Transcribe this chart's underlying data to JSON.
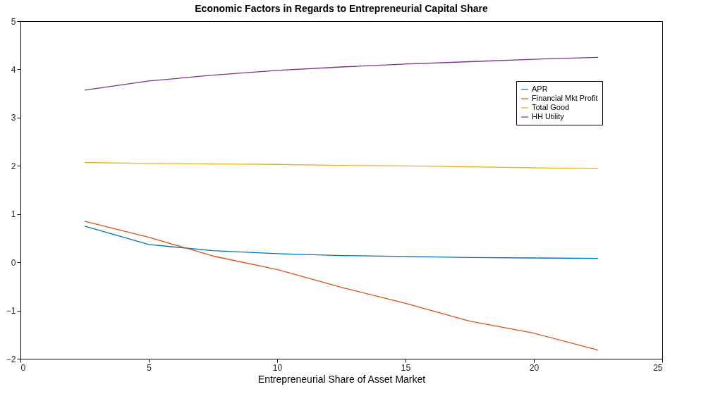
{
  "chart_data": {
    "type": "line",
    "title": "Economic Factors in Regards to Entrepreneurial Capital Share",
    "xlabel": "Entrepreneurial Share of Asset Market",
    "x": [
      2.5,
      5,
      7.5,
      10,
      12.5,
      15,
      17.5,
      20,
      22.5
    ],
    "series": [
      {
        "name": "APR",
        "color": "#0072bd",
        "values": [
          0.75,
          0.37,
          0.24,
          0.18,
          0.14,
          0.12,
          0.1,
          0.09,
          0.08
        ]
      },
      {
        "name": "Financial Mkt Profit",
        "color": "#d95319",
        "values": [
          0.85,
          0.52,
          0.13,
          -0.15,
          -0.52,
          -0.85,
          -1.22,
          -1.47,
          -1.82
        ]
      },
      {
        "name": "Total Good",
        "color": "#edb120",
        "values": [
          2.07,
          2.05,
          2.04,
          2.03,
          2.01,
          2.0,
          1.98,
          1.96,
          1.94
        ]
      },
      {
        "name": "HH Utility",
        "color": "#7e2f8e",
        "values": [
          3.57,
          3.76,
          3.88,
          3.98,
          4.05,
          4.11,
          4.16,
          4.21,
          4.25
        ]
      }
    ],
    "xlim": [
      0,
      25
    ],
    "xticks": [
      0,
      5,
      10,
      15,
      20,
      25
    ],
    "ylim": [
      -2,
      5
    ],
    "yticks": [
      -2,
      -1,
      0,
      1,
      2,
      3,
      4,
      5
    ],
    "grid": false,
    "legend": "top right",
    "marker": "none",
    "line_style": "solid"
  }
}
